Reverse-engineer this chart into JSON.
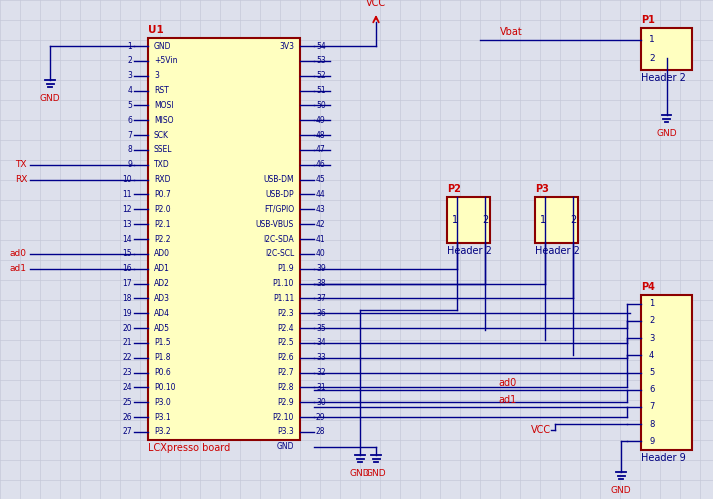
{
  "bg_color": "#dde0ec",
  "grid_color": "#c5c8d8",
  "line_color": "#00008B",
  "border_color": "#8B0000",
  "fill_color": "#FFFFC0",
  "text_red": "#CC0000",
  "text_blue": "#000080",
  "left_pins": [
    [
      "1",
      "GND"
    ],
    [
      "2",
      "+5Vin"
    ],
    [
      "3",
      "3"
    ],
    [
      "4",
      "RST"
    ],
    [
      "5",
      "MOSI"
    ],
    [
      "6",
      "MISO"
    ],
    [
      "7",
      "SCK"
    ],
    [
      "8",
      "SSEL"
    ],
    [
      "9",
      "TXD"
    ],
    [
      "10",
      "RXD"
    ],
    [
      "11",
      "P0.7"
    ],
    [
      "12",
      "P2.0"
    ],
    [
      "13",
      "P2.1"
    ],
    [
      "14",
      "P2.2"
    ],
    [
      "15",
      "AD0"
    ],
    [
      "16",
      "AD1"
    ],
    [
      "17",
      "AD2"
    ],
    [
      "18",
      "AD3"
    ],
    [
      "19",
      "AD4"
    ],
    [
      "20",
      "AD5"
    ],
    [
      "21",
      "P1.5"
    ],
    [
      "22",
      "P1.8"
    ],
    [
      "23",
      "P0.6"
    ],
    [
      "24",
      "P0.10"
    ],
    [
      "25",
      "P3.0"
    ],
    [
      "26",
      "P3.1"
    ],
    [
      "27",
      "P3.2"
    ]
  ],
  "right_pins": [
    [
      "54",
      "3V3"
    ],
    [
      "53",
      ""
    ],
    [
      "52",
      ""
    ],
    [
      "51",
      ""
    ],
    [
      "50",
      ""
    ],
    [
      "49",
      ""
    ],
    [
      "48",
      ""
    ],
    [
      "47",
      ""
    ],
    [
      "46",
      ""
    ],
    [
      "45",
      "USB-DM"
    ],
    [
      "44",
      "USB-DP"
    ],
    [
      "43",
      "FT/GPIO"
    ],
    [
      "42",
      "USB-VBUS"
    ],
    [
      "41",
      "I2C-SDA"
    ],
    [
      "40",
      "I2C-SCL"
    ],
    [
      "39",
      "P1.9"
    ],
    [
      "38",
      "P1.10"
    ],
    [
      "37",
      "P1.11"
    ],
    [
      "36",
      "P2.3"
    ],
    [
      "35",
      "P2.4"
    ],
    [
      "34",
      "P2.5"
    ],
    [
      "33",
      "P2.6"
    ],
    [
      "32",
      "P2.7"
    ],
    [
      "31",
      "P2.8"
    ],
    [
      "30",
      "P2.9"
    ],
    [
      "29",
      "P2.10"
    ],
    [
      "28",
      "P3.3"
    ],
    [
      "",
      "GND"
    ]
  ],
  "figsize": [
    7.13,
    4.99
  ],
  "dpi": 100
}
